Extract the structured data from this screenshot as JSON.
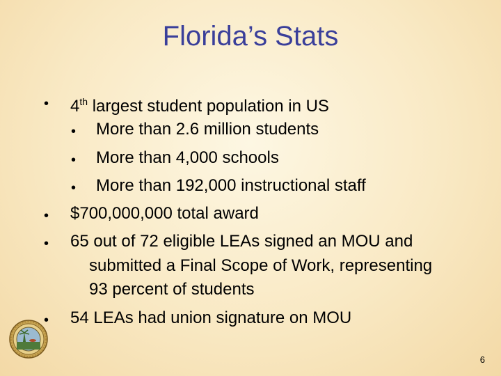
{
  "title": "Florida’s Stats",
  "bullets": [
    {
      "text_prefix": "4",
      "superscript": "th",
      "text_rest": " largest student population in US"
    },
    {
      "text": "$700,000,000 total award"
    },
    {
      "text_lines": [
        "65 out of 72 eligible LEAs signed an MOU and",
        "submitted a Final Scope of Work, representing",
        "93 percent of students"
      ]
    },
    {
      "text": "54 LEAs had union signature on MOU"
    }
  ],
  "sub_bullets": [
    "More than 2.6 million students",
    "More than 4,000 schools",
    "More than 192,000 instructional staff"
  ],
  "bullet_glyph": "•",
  "page_number": "6",
  "colors": {
    "title": "#3a3f9a",
    "background": "#f9e9c4"
  }
}
